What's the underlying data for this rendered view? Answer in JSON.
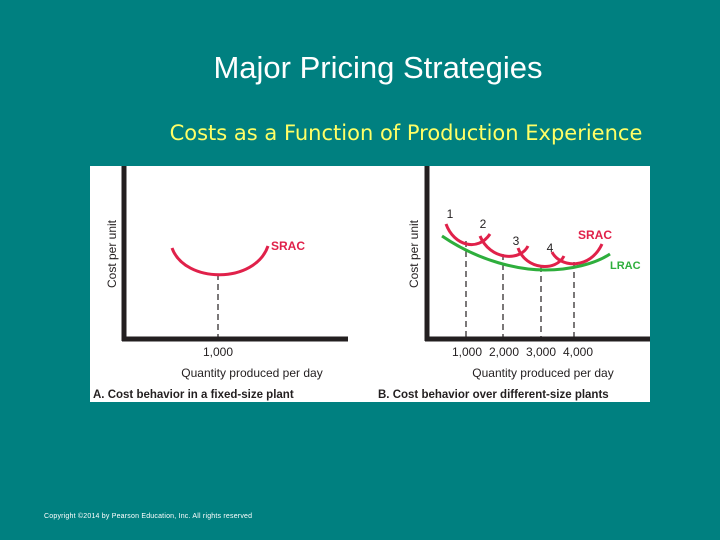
{
  "slide": {
    "title": "Major Pricing Strategies",
    "subtitle": "Costs as a Function of Production Experience",
    "copyright": "Copyright ©2014 by Pearson Education, Inc. All rights reserved"
  },
  "colors": {
    "background": "#008080",
    "title": "#ffffff",
    "subtitle": "#ffff66",
    "srac": "#e0214a",
    "lrac": "#2eae3c",
    "axis": "#231f20"
  },
  "chart_data": [
    {
      "type": "line",
      "caption": "A. Cost behavior in a fixed-size plant",
      "ylabel": "Cost per unit",
      "xlabel": "Quantity produced per day",
      "x_ticks": [
        "1,000"
      ],
      "series": [
        {
          "name": "SRAC",
          "kind": "u-curve",
          "min_at": 1000
        }
      ]
    },
    {
      "type": "line",
      "caption": "B. Cost behavior over different-size plants",
      "ylabel": "Cost per unit",
      "xlabel": "Quantity produced per day",
      "x_ticks": [
        "1,000",
        "2,000",
        "3,000",
        "4,000"
      ],
      "curve_numbers": [
        "1",
        "2",
        "3",
        "4"
      ],
      "series": [
        {
          "name": "SRAC",
          "kind": "u-curves",
          "min_at": [
            1000,
            2000,
            3000,
            4000
          ]
        },
        {
          "name": "LRAC",
          "kind": "envelope"
        }
      ]
    }
  ]
}
